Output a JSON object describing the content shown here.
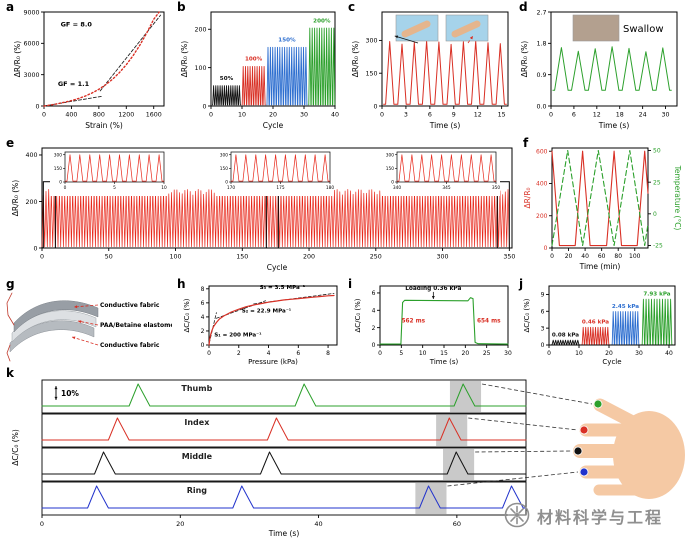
{
  "figure": {
    "letters": [
      "a",
      "b",
      "c",
      "d",
      "e",
      "f",
      "g",
      "h",
      "i",
      "j",
      "k"
    ]
  },
  "watermark": {
    "text": "材料科学与工程"
  },
  "panel_g": {
    "labels": [
      "Conductive fabric",
      "PAA/Betaine elastomer",
      "Conductive fabric"
    ]
  },
  "hand": {
    "fingers": [
      {
        "name": "Thumb",
        "color": "#2ca02c"
      },
      {
        "name": "Index",
        "color": "#d93025"
      },
      {
        "name": "Middle",
        "color": "#111111"
      },
      {
        "name": "Ring",
        "color": "#2233cc"
      }
    ]
  },
  "chart_data": [
    {
      "id": "a",
      "type": "line",
      "xlabel": "Strain (%)",
      "ylabel": "ΔR/R₀ (%)",
      "xlim": [
        0,
        1750
      ],
      "xticks": [
        0,
        400,
        800,
        1200,
        1600
      ],
      "ylim": [
        0,
        9000
      ],
      "yticks": [
        0,
        3000,
        6000,
        9000
      ],
      "series": [
        {
          "name": "strain-response",
          "color": "#d93025",
          "dash": "1.5 2.3",
          "points": [
            [
              0,
              0
            ],
            [
              100,
              100
            ],
            [
              200,
              220
            ],
            [
              300,
              360
            ],
            [
              400,
              520
            ],
            [
              500,
              710
            ],
            [
              600,
              950
            ],
            [
              700,
              1240
            ],
            [
              800,
              1600
            ],
            [
              900,
              2040
            ],
            [
              1000,
              2570
            ],
            [
              1100,
              3200
            ],
            [
              1200,
              3950
            ],
            [
              1300,
              4830
            ],
            [
              1400,
              5850
            ],
            [
              1500,
              7020
            ],
            [
              1600,
              8300
            ],
            [
              1680,
              9000
            ]
          ]
        }
      ],
      "fit_lines": [
        {
          "gf": "1.1",
          "points": [
            [
              0,
              0
            ],
            [
              860,
              950
            ]
          ]
        },
        {
          "gf": "8.0",
          "points": [
            [
              820,
              1450
            ],
            [
              1700,
              8700
            ]
          ]
        }
      ],
      "annotations": [
        {
          "text": "GF = 8.0",
          "x": 470,
          "y": 7600
        },
        {
          "text": "GF = 1.1",
          "x": 430,
          "y": 1900
        }
      ]
    },
    {
      "id": "b",
      "type": "peak-groups",
      "xlabel": "Cycle",
      "ylabel": "ΔR/R₀ (%)",
      "xlim": [
        0,
        40
      ],
      "xticks": [
        0,
        10,
        20,
        30,
        40
      ],
      "ylim": [
        0,
        245
      ],
      "yticks": [
        0,
        100,
        200
      ],
      "baseline": 3,
      "groups": [
        {
          "label": "50%",
          "color": "#111111",
          "cycles": [
            0.5,
            9.5
          ],
          "n": 13,
          "amplitude": 50
        },
        {
          "label": "100%",
          "color": "#d93025",
          "cycles": [
            10,
            17.5
          ],
          "n": 10,
          "amplitude": 100
        },
        {
          "label": "150%",
          "color": "#2e6fd0",
          "cycles": [
            18,
            31
          ],
          "n": 17,
          "amplitude": 150
        },
        {
          "label": "200%",
          "color": "#2ca02c",
          "cycles": [
            31.5,
            40
          ],
          "n": 11,
          "amplitude": 200
        }
      ]
    },
    {
      "id": "c",
      "type": "peaks",
      "xlabel": "Time (s)",
      "ylabel": "ΔR/R₀ (%)",
      "xlim": [
        0,
        15.8
      ],
      "xticks": [
        0,
        3,
        6,
        9,
        12,
        15
      ],
      "ylim": [
        0,
        430
      ],
      "yticks": [
        0,
        150,
        300
      ],
      "color": "#d93025",
      "n_peaks": 10,
      "t0": 0.2,
      "t1": 15.6,
      "base": 8,
      "amplitude": 290,
      "insets": [
        {
          "name": "finger-bent-photo"
        },
        {
          "name": "finger-straight-photo"
        }
      ]
    },
    {
      "id": "d",
      "type": "peaks",
      "xlabel": "Time (s)",
      "ylabel": "ΔR/R₀ (%)",
      "xlim": [
        0,
        33
      ],
      "xticks": [
        0,
        6,
        12,
        18,
        24,
        30
      ],
      "ylim": [
        0,
        2.7
      ],
      "yticks": [
        0,
        0.9,
        1.8,
        2.7
      ],
      "ytick_labels": [
        "0.0",
        "0.9",
        "1.8",
        "2.7"
      ],
      "color": "#2ca02c",
      "n_peaks": 7,
      "t0": 0.5,
      "t1": 31.5,
      "base": 0.45,
      "amplitude": 1.25,
      "annotation": "Swallow",
      "insets": [
        {
          "name": "throat-photo"
        }
      ]
    },
    {
      "id": "e",
      "type": "endurance",
      "xlabel": "Cycle",
      "ylabel": "ΔR/R₀ (%)",
      "xlim": [
        0,
        352
      ],
      "xticks": [
        0,
        50,
        100,
        150,
        200,
        250,
        300,
        350
      ],
      "ylim": [
        0,
        430
      ],
      "yticks": [
        0,
        200,
        400
      ],
      "color": "#e8291c",
      "n_cycles": 175,
      "base": 5,
      "amplitude": 252,
      "insets": [
        {
          "xrange": [
            0,
            10
          ],
          "xticks": [
            0,
            5,
            10
          ],
          "yticks": [
            0,
            150,
            300
          ]
        },
        {
          "xrange": [
            170,
            180
          ],
          "xticks": [
            170,
            175,
            180
          ],
          "yticks": [
            0,
            150,
            300
          ]
        },
        {
          "xrange": [
            340,
            350
          ],
          "xticks": [
            340,
            345,
            350
          ],
          "yticks": [
            0,
            150,
            300
          ]
        }
      ],
      "highlights": [
        [
          1,
          10
        ],
        [
          168,
          177
        ],
        [
          341,
          350
        ]
      ]
    },
    {
      "id": "f",
      "type": "dual-axis",
      "xlabel": "Time (min)",
      "ylabel_left": "ΔR/R₀",
      "ylabel_right": "Temperature (°C)",
      "color_left": "#d93025",
      "color_right": "#2ca02c",
      "xlim": [
        0,
        116
      ],
      "xticks": [
        0,
        20,
        40,
        60,
        80,
        100
      ],
      "ylim_left": [
        0,
        620
      ],
      "yticks_left": [
        0,
        200,
        400,
        600
      ],
      "ylim_right": [
        -27,
        52
      ],
      "yticks_right": [
        -25,
        0,
        25,
        50
      ],
      "resistance_peaks_t": [
        0,
        37,
        75,
        112
      ],
      "resistance_peak": 600,
      "resistance_base": 15,
      "temperature_points": [
        [
          0,
          -25
        ],
        [
          19,
          50
        ],
        [
          37,
          -25
        ],
        [
          56,
          50
        ],
        [
          75,
          -25
        ],
        [
          94,
          50
        ],
        [
          112,
          -25
        ],
        [
          116,
          -8
        ]
      ]
    },
    {
      "id": "h",
      "type": "line",
      "xlabel": "Pressure (kPa)",
      "ylabel": "ΔC/C₀ (%)",
      "xlim": [
        0,
        8.6
      ],
      "xticks": [
        0,
        2,
        4,
        6,
        8
      ],
      "ylim": [
        0,
        8.4
      ],
      "yticks": [
        0,
        2,
        4,
        6,
        8
      ],
      "series": [
        {
          "name": "pressure-response",
          "color": "#d93025",
          "points": [
            [
              0,
              0
            ],
            [
              0.05,
              0.8
            ],
            [
              0.1,
              1.4
            ],
            [
              0.2,
              2.1
            ],
            [
              0.3,
              2.6
            ],
            [
              0.5,
              3.2
            ],
            [
              0.7,
              3.7
            ],
            [
              1,
              4.15
            ],
            [
              1.5,
              4.7
            ],
            [
              2,
              5.1
            ],
            [
              2.5,
              5.45
            ],
            [
              3,
              5.7
            ],
            [
              3.5,
              5.9
            ],
            [
              4,
              6.1
            ],
            [
              4.5,
              6.25
            ],
            [
              5,
              6.4
            ],
            [
              5.5,
              6.5
            ],
            [
              6,
              6.6
            ],
            [
              6.5,
              6.7
            ],
            [
              7,
              6.8
            ],
            [
              7.5,
              6.9
            ],
            [
              8,
              7.0
            ],
            [
              8.4,
              7.05
            ]
          ]
        }
      ],
      "fit_lines": [
        {
          "points": [
            [
              0.02,
              0.3
            ],
            [
              0.5,
              4.6
            ]
          ]
        },
        {
          "points": [
            [
              0.5,
              3.8
            ],
            [
              3.8,
              6.3
            ]
          ]
        },
        {
          "points": [
            [
              3.0,
              5.85
            ],
            [
              8.4,
              7.35
            ]
          ]
        }
      ],
      "annotations": [
        {
          "text": "S₃ = 3.5 MPa⁻¹",
          "x": 3.4,
          "y": 8.0,
          "anchor": "start"
        },
        {
          "text": "S₂ = 22.9 MPa⁻¹",
          "x": 2.2,
          "y": 4.6,
          "anchor": "start"
        },
        {
          "text": "S₁ = 200  MPa⁻¹",
          "x": 0.35,
          "y": 1.2,
          "anchor": "start"
        }
      ]
    },
    {
      "id": "i",
      "type": "pulse",
      "xlabel": "Time (s)",
      "ylabel": "ΔC/C₀ (%)",
      "xlim": [
        0,
        30
      ],
      "xticks": [
        0,
        5,
        10,
        15,
        20,
        25,
        30
      ],
      "ylim": [
        0,
        6.8
      ],
      "yticks": [
        0,
        2,
        4,
        6
      ],
      "color": "#2ca02c",
      "points": [
        [
          0,
          0.1
        ],
        [
          4.9,
          0.1
        ],
        [
          5.3,
          4.9
        ],
        [
          5.8,
          5.15
        ],
        [
          20.6,
          5.1
        ],
        [
          21.2,
          5.45
        ],
        [
          21.8,
          5.35
        ],
        [
          22.3,
          0.3
        ],
        [
          23,
          0.15
        ],
        [
          30,
          0.1
        ]
      ],
      "annotations": [
        {
          "text": "Loading 0.36 kPa",
          "x": 12.5,
          "y": 6.35,
          "color": "#111111",
          "arrow_to": [
            12.5,
            5.3
          ]
        },
        {
          "text": "562 ms",
          "x": 7.8,
          "y": 2.6,
          "color": "#d93025"
        },
        {
          "text": "654 ms",
          "x": 25.5,
          "y": 2.6,
          "color": "#d93025"
        }
      ]
    },
    {
      "id": "j",
      "type": "peak-groups",
      "xlabel": "Cycle",
      "ylabel": "ΔC/C₀ (%)",
      "xlim": [
        0,
        42
      ],
      "xticks": [
        0,
        10,
        20,
        30,
        40
      ],
      "ylim": [
        0,
        10.5
      ],
      "yticks": [
        0,
        3,
        6,
        9
      ],
      "baseline": 0.15,
      "groups": [
        {
          "label": "0.08 kPa",
          "color": "#111111",
          "cycles": [
            1,
            10
          ],
          "n": 11,
          "amplitude": 0.7
        },
        {
          "label": "0.46 kPa",
          "color": "#d93025",
          "cycles": [
            11,
            20
          ],
          "n": 11,
          "amplitude": 3.0
        },
        {
          "label": "2.45 kPa",
          "color": "#2e6fd0",
          "cycles": [
            21,
            30
          ],
          "n": 11,
          "amplitude": 5.8
        },
        {
          "label": "7.93 kPa",
          "color": "#2ca02c",
          "cycles": [
            31,
            41
          ],
          "n": 11,
          "amplitude": 8.0
        }
      ]
    },
    {
      "id": "k",
      "type": "multi-trace",
      "xlabel": "Time (s)",
      "ylabel": "ΔC/C₀ (%)",
      "xlim": [
        0,
        70
      ],
      "xticks": [
        0,
        20,
        40,
        60
      ],
      "scale_bar": "10%",
      "traces": [
        {
          "name": "Thumb",
          "color": "#2ca02c",
          "peaks": [
            14,
            38,
            61
          ],
          "highlight": [
            59,
            63.5
          ]
        },
        {
          "name": "Index",
          "color": "#d93025",
          "peaks": [
            11,
            34,
            59
          ],
          "highlight": [
            57,
            61.5
          ]
        },
        {
          "name": "Middle",
          "color": "#111111",
          "peaks": [
            9,
            33,
            60
          ],
          "highlight": [
            58,
            62.5
          ]
        },
        {
          "name": "Ring",
          "color": "#2233cc",
          "peaks": [
            8,
            29,
            56,
            68
          ],
          "highlight": [
            54,
            58.5
          ]
        }
      ]
    }
  ]
}
